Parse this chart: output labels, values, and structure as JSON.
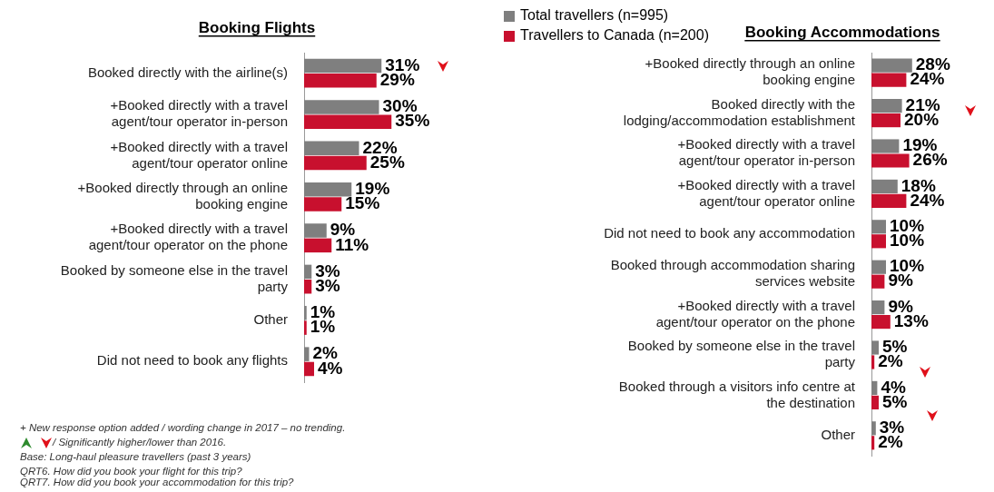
{
  "chart_data": [
    {
      "type": "bar",
      "orientation": "horizontal",
      "title": "Booking Flights",
      "categories": [
        "Booked directly with the airline(s)",
        "+Booked directly with a travel agent/tour operator in-person",
        "+Booked directly with a travel agent/tour operator online",
        "+Booked directly through an online booking engine",
        "+Booked directly with a travel agent/tour operator on the phone",
        "Booked by someone else in the travel party",
        "Other",
        "Did not need to book any flights"
      ],
      "series": [
        {
          "color": "#7f7f7f",
          "values": [
            31,
            30,
            22,
            19,
            9,
            3,
            1,
            2
          ],
          "value_labels": [
            "31%",
            "30%",
            "22%",
            "19%",
            "9%",
            "3%",
            "1%",
            "2%"
          ]
        },
        {
          "color": "#c8102e",
          "values": [
            29,
            35,
            25,
            15,
            11,
            3,
            1,
            4
          ],
          "value_labels": [
            "29%",
            "35%",
            "25%",
            "15%",
            "11%",
            "3%",
            "1%",
            "4%"
          ]
        }
      ],
      "annotations": [
        "+ New response option added / wording change in 2017 – no trending.",
        "/ Significantly higher/lower than 2016.",
        "Base: Long-haul pleasure travellers (past 3 years)",
        "QRT6. How did you book your flight for this trip?",
        "QRT7. How did you book your accommodation for this trip?"
      ]
    },
    {
      "type": "bar",
      "orientation": "horizontal",
      "title": "Booking Accommodations",
      "legend": "top left",
      "categories": [
        "+Booked directly through an online booking engine",
        "Booked directly with the lodging/accommodation establishment",
        "+Booked directly with a travel agent/tour operator in-person",
        "+Booked directly with a travel agent/tour operator online",
        "Did not need to book any accommodation",
        "Booked through accommodation sharing services website",
        "+Booked directly with a travel agent/tour operator on the phone",
        "Booked by someone else in the travel party",
        "Booked through a visitors info centre at the destination",
        "Other"
      ],
      "series": [
        {
          "name": "Total travellers (n=995)",
          "color": "#7f7f7f",
          "values": [
            28,
            21,
            19,
            18,
            10,
            10,
            9,
            5,
            4,
            3
          ],
          "value_labels": [
            "28%",
            "21%",
            "19%",
            "18%",
            "10%",
            "10%",
            "9%",
            "5%",
            "4%",
            "3%"
          ]
        },
        {
          "name": "Travellers to Canada (n=200)",
          "color": "#c8102e",
          "values": [
            24,
            20,
            26,
            24,
            10,
            9,
            13,
            2,
            5,
            2
          ],
          "value_labels": [
            "24%",
            "20%",
            "26%",
            "24%",
            "10%",
            "9%",
            "13%",
            "2%",
            "5%",
            "2%"
          ]
        }
      ]
    }
  ]
}
